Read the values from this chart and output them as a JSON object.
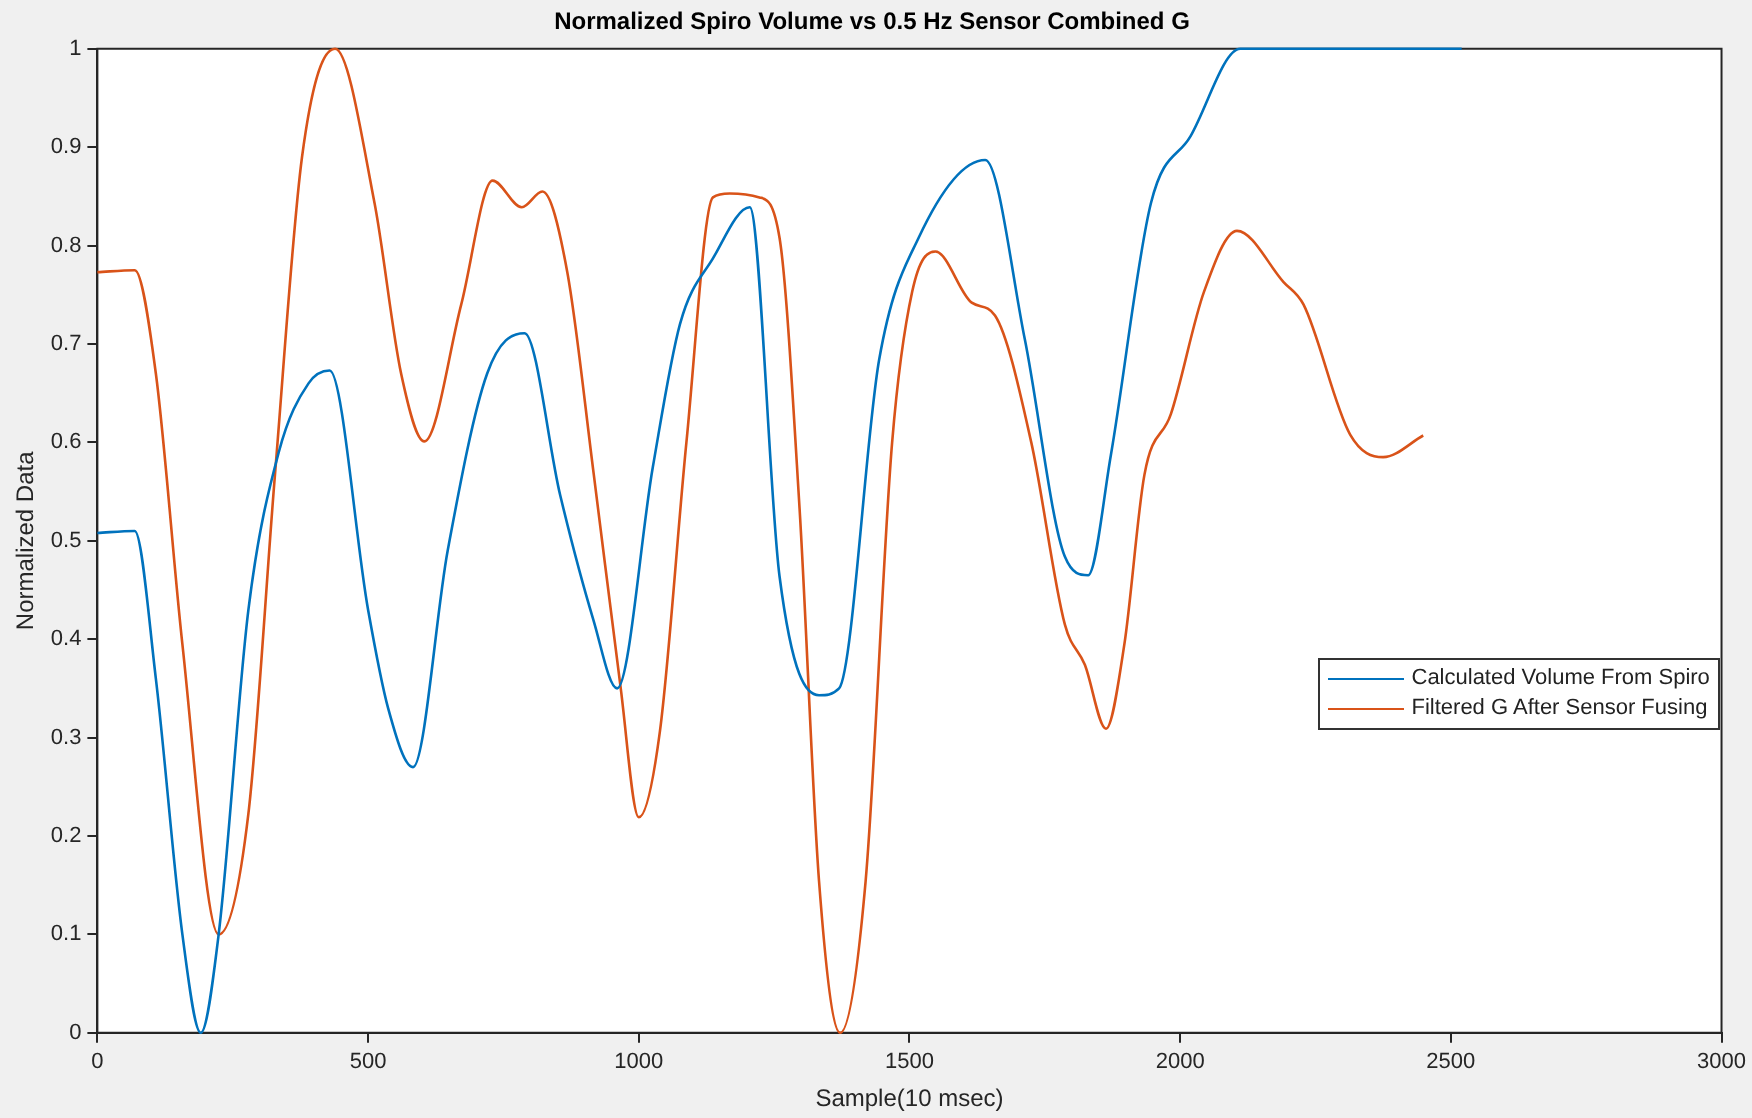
{
  "chart_data": {
    "type": "line",
    "title": "Normalized Spiro Volume vs 0.5 Hz Sensor Combined G",
    "xlabel": "Sample(10 msec)",
    "ylabel": "Normalized Data",
    "xlim": [
      0,
      3000
    ],
    "xticks": [
      0,
      500,
      1000,
      1500,
      2000,
      2500,
      3000
    ],
    "ylim": [
      0,
      1
    ],
    "yticks": [
      0,
      0.1,
      0.2,
      0.3,
      0.4,
      0.5,
      0.6,
      0.7,
      0.8,
      0.9,
      1
    ],
    "grid": false,
    "legend": "right",
    "marker": "none",
    "line_style": "solid",
    "series": [
      {
        "name": "Calculated Volume From Spiro",
        "color": "#0072bd",
        "x": [
          0,
          69,
          108,
          157,
          191,
          224,
          279,
          335,
          390,
          429,
          500,
          537,
          583,
          647,
          720,
          789,
          855,
          916,
          960,
          1026,
          1076,
          1137,
          1205,
          1260,
          1333,
          1370,
          1444,
          1517,
          1640,
          1713,
          1787,
          1830,
          1872,
          1946,
          2019,
          2111,
          2520
        ],
        "values": [
          0.508,
          0.51,
          0.36,
          0.1,
          0,
          0.1,
          0.43,
          0.59,
          0.66,
          0.673,
          0.43,
          0.33,
          0.27,
          0.49,
          0.67,
          0.711,
          0.546,
          0.42,
          0.35,
          0.575,
          0.72,
          0.787,
          0.839,
          0.464,
          0.343,
          0.35,
          0.684,
          0.808,
          0.887,
          0.705,
          0.484,
          0.465,
          0.587,
          0.843,
          0.911,
          1,
          1
        ]
      },
      {
        "name": "Filtered G After Sensor Fusing",
        "color": "#d95319",
        "x": [
          0,
          69,
          108,
          157,
          224,
          279,
          328,
          378,
          439,
          512,
          561,
          604,
          672,
          730,
          784,
          822,
          868,
          917,
          966,
          1000,
          1039,
          1088,
          1137,
          1168,
          1223,
          1260,
          1297,
          1333,
          1372,
          1419,
          1468,
          1505,
          1548,
          1615,
          1658,
          1725,
          1787,
          1824,
          1863,
          1897,
          1934,
          1983,
          2044,
          2105,
          2191,
          2228,
          2314,
          2375,
          2449
        ],
        "values": [
          0.773,
          0.775,
          0.67,
          0.395,
          0.1,
          0.223,
          0.567,
          0.89,
          1,
          0.843,
          0.67,
          0.601,
          0.74,
          0.866,
          0.839,
          0.855,
          0.773,
          0.567,
          0.353,
          0.219,
          0.306,
          0.6,
          0.849,
          0.853,
          0.849,
          0.808,
          0.533,
          0.154,
          0,
          0.154,
          0.6,
          0.753,
          0.794,
          0.742,
          0.729,
          0.6,
          0.415,
          0.374,
          0.309,
          0.395,
          0.567,
          0.629,
          0.753,
          0.815,
          0.763,
          0.74,
          0.608,
          0.585,
          0.607
        ]
      }
    ]
  }
}
